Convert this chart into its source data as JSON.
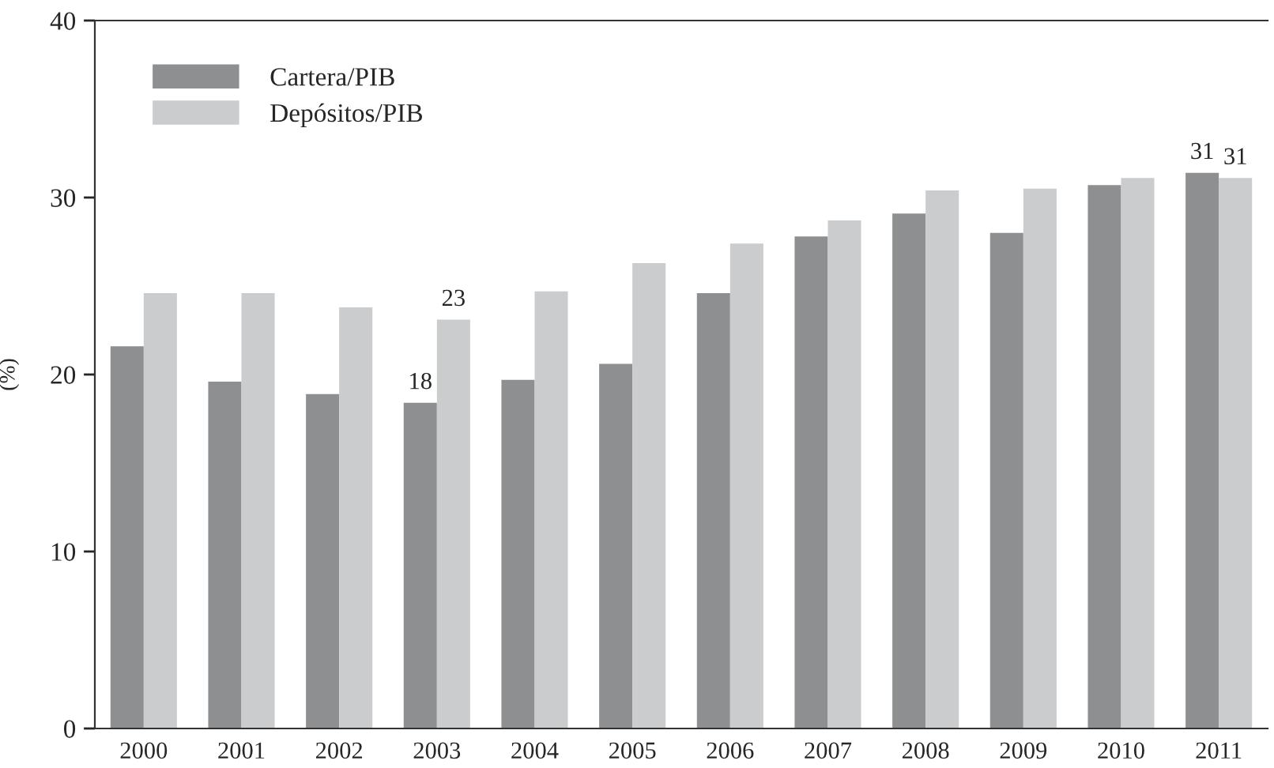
{
  "chart_data": {
    "type": "bar",
    "ylabel": "(%)",
    "categories": [
      "2000",
      "2001",
      "2002",
      "2003",
      "2004",
      "2005",
      "2006",
      "2007",
      "2008",
      "2009",
      "2010",
      "2011"
    ],
    "series": [
      {
        "name": "Cartera/PIB",
        "color": "#8e8f91",
        "values": [
          21.6,
          19.6,
          18.9,
          18.4,
          19.7,
          20.6,
          24.6,
          27.8,
          29.1,
          28.0,
          30.7,
          31.4
        ],
        "value_labels": [
          null,
          null,
          null,
          "18",
          null,
          null,
          null,
          null,
          null,
          null,
          null,
          "31"
        ]
      },
      {
        "name": "Depósitos/PIB",
        "color": "#cbcccd",
        "values": [
          24.6,
          24.6,
          23.8,
          23.1,
          24.7,
          26.3,
          27.4,
          28.7,
          30.4,
          30.5,
          31.1,
          31.1
        ],
        "value_labels": [
          null,
          null,
          null,
          "23",
          null,
          null,
          null,
          null,
          null,
          null,
          null,
          "31"
        ]
      }
    ],
    "ylim": [
      0,
      40
    ],
    "yticks": [
      0,
      10,
      20,
      30,
      40
    ],
    "grid": false,
    "legend": "top left"
  }
}
